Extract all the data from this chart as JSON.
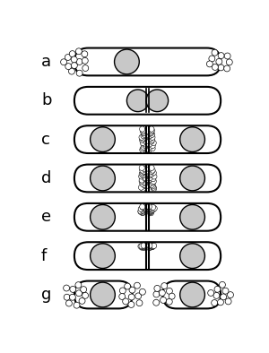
{
  "fig_width": 3.0,
  "fig_height": 3.94,
  "dpi": 100,
  "bg_color": "#ffffff",
  "n_rows": 7,
  "labels": [
    "a",
    "b",
    "c",
    "d",
    "e",
    "f",
    "g"
  ],
  "cell_color": "#ffffff",
  "cell_edge_color": "#000000",
  "nucleus_color": "#c8c8c8",
  "small_circle_color": "#ffffff",
  "small_circle_edge": "#000000",
  "septum_color": "#000000",
  "label_fontsize": 13,
  "cell_lw": 1.5,
  "nuc_lw": 1.0,
  "sm_lw": 0.5,
  "sep_lw": 1.5
}
